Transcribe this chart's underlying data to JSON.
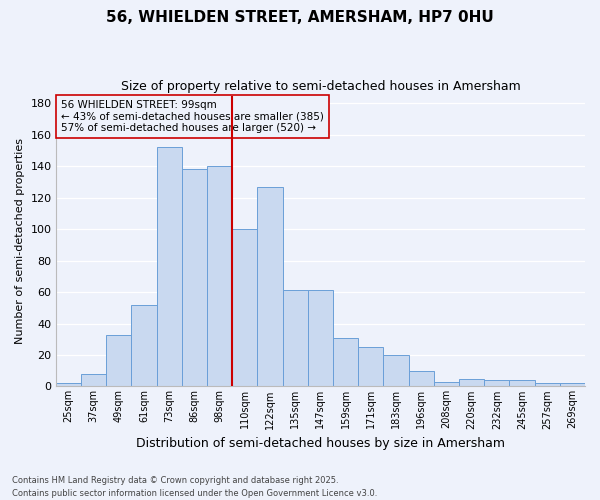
{
  "title": "56, WHIELDEN STREET, AMERSHAM, HP7 0HU",
  "subtitle": "Size of property relative to semi-detached houses in Amersham",
  "xlabel": "Distribution of semi-detached houses by size in Amersham",
  "ylabel": "Number of semi-detached properties",
  "bins": [
    "25sqm",
    "37sqm",
    "49sqm",
    "61sqm",
    "73sqm",
    "86sqm",
    "98sqm",
    "110sqm",
    "122sqm",
    "135sqm",
    "147sqm",
    "159sqm",
    "171sqm",
    "183sqm",
    "196sqm",
    "208sqm",
    "220sqm",
    "232sqm",
    "245sqm",
    "257sqm",
    "269sqm"
  ],
  "values": [
    2,
    8,
    33,
    52,
    152,
    138,
    140,
    100,
    127,
    61,
    61,
    31,
    25,
    20,
    10,
    3,
    5,
    4,
    4,
    2,
    2
  ],
  "property_line_bin": 6,
  "property_size": "99sqm",
  "pct_smaller": 43,
  "pct_larger": 57,
  "n_smaller": 385,
  "n_larger": 520,
  "bar_facecolor": "#c9d9f0",
  "bar_edgecolor": "#6a9fd8",
  "line_color": "#cc0000",
  "box_edgecolor": "#cc0000",
  "background_color": "#eef2fb",
  "grid_color": "#ffffff",
  "ylim": [
    0,
    185
  ],
  "yticks": [
    0,
    20,
    40,
    60,
    80,
    100,
    120,
    140,
    160,
    180
  ],
  "footnote1": "Contains HM Land Registry data © Crown copyright and database right 2025.",
  "footnote2": "Contains public sector information licensed under the Open Government Licence v3.0."
}
